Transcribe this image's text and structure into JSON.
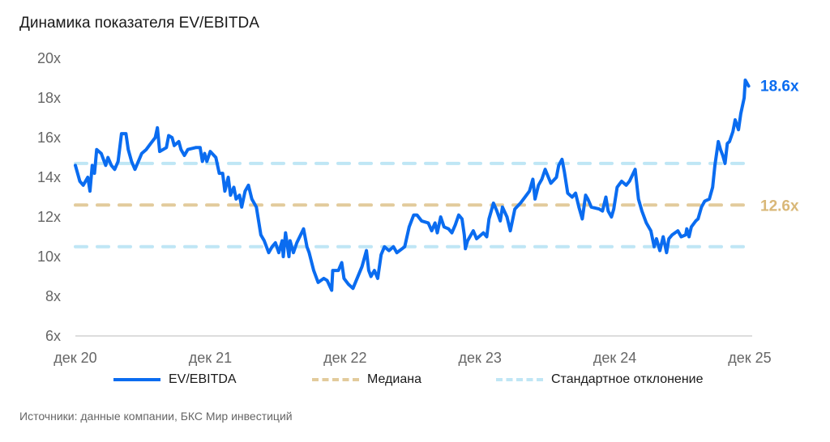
{
  "title": "Динамика показателя EV/EBITDA",
  "source": "Источники: данные компании, БКС Мир инвестиций",
  "colors": {
    "line": "#0a6cf0",
    "median": "#e2cb9c",
    "std": "#bfe6f5",
    "axis": "#bbbbbb",
    "text": "#666666"
  },
  "chart_data": {
    "type": "line",
    "title": "Динамика показателя EV/EBITDA",
    "xlabel": "",
    "ylabel": "",
    "x_unit": "months since дек 20",
    "xlim": [
      0,
      60
    ],
    "ylim": [
      6,
      20
    ],
    "y_ticks": [
      {
        "v": 6,
        "label": "6x"
      },
      {
        "v": 8,
        "label": "8x"
      },
      {
        "v": 10,
        "label": "10x"
      },
      {
        "v": 12,
        "label": "12x"
      },
      {
        "v": 14,
        "label": "14x"
      },
      {
        "v": 16,
        "label": "16x"
      },
      {
        "v": 18,
        "label": "18x"
      },
      {
        "v": 20,
        "label": "20x"
      }
    ],
    "x_ticks": [
      {
        "v": 0,
        "label": "дек 20"
      },
      {
        "v": 12,
        "label": "дек 21"
      },
      {
        "v": 24,
        "label": "дек 22"
      },
      {
        "v": 36,
        "label": "дек 23"
      },
      {
        "v": 48,
        "label": "дек 24"
      },
      {
        "v": 60,
        "label": "дек 25"
      }
    ],
    "grid": false,
    "legend_position": "bottom",
    "series": [
      {
        "name": "EV/EBITDA",
        "end_label": "18.6x",
        "x": [
          0,
          0.4,
          0.7,
          1.1,
          1.3,
          1.5,
          1.7,
          1.9,
          2.3,
          2.7,
          2.9,
          3.2,
          3.5,
          3.8,
          4.1,
          4.5,
          4.7,
          5.0,
          5.3,
          5.6,
          5.9,
          6.3,
          6.7,
          7.1,
          7.3,
          7.5,
          8.1,
          8.3,
          8.6,
          8.8,
          9.2,
          9.4,
          9.7,
          10.0,
          10.7,
          11.1,
          11.3,
          11.5,
          11.7,
          12.0,
          12.5,
          12.8,
          13.1,
          13.3,
          13.6,
          13.8,
          14.1,
          14.3,
          14.6,
          14.8,
          15.1,
          15.4,
          15.7,
          16.1,
          16.5,
          16.8,
          17.2,
          17.5,
          17.8,
          18.1,
          18.4,
          18.5,
          18.7,
          19.0,
          19.1,
          19.4,
          19.7,
          20.3,
          20.6,
          20.8,
          21.2,
          21.6,
          22.1,
          22.4,
          22.8,
          22.9,
          23.4,
          23.7,
          23.9,
          24.3,
          24.7,
          25.5,
          25.9,
          26.1,
          26.3,
          26.6,
          26.9,
          27.2,
          27.5,
          27.9,
          28.3,
          28.6,
          29.3,
          29.7,
          30.1,
          30.4,
          30.8,
          31.4,
          31.7,
          32.0,
          32.2,
          32.5,
          32.8,
          33.2,
          33.5,
          33.8,
          34.1,
          34.4,
          34.6,
          34.7,
          34.9,
          35.4,
          35.7,
          35.9,
          36.3,
          36.6,
          36.8,
          37.2,
          37.5,
          37.8,
          38.0,
          38.4,
          38.7,
          39.1,
          39.6,
          40.0,
          40.4,
          40.7,
          40.9,
          41.2,
          41.5,
          41.8,
          42.3,
          42.8,
          43.0,
          43.3,
          43.5,
          43.8,
          44.2,
          44.5,
          44.8,
          45.1,
          45.4,
          45.6,
          45.9,
          46.6,
          46.9,
          47.2,
          47.4,
          47.7,
          47.9,
          48.2,
          48.6,
          49.0,
          49.3,
          49.8,
          50.1,
          50.4,
          50.8,
          51.2,
          51.5,
          51.7,
          52.0,
          52.3,
          52.6,
          52.8,
          53.1,
          53.6,
          53.9,
          54.3,
          54.4,
          54.6,
          54.8,
          55.2,
          55.4,
          55.7,
          56.0,
          56.4,
          56.7,
          56.9,
          57.2,
          57.4,
          57.6,
          57.8,
          58.0,
          58.2,
          58.5,
          58.7,
          59.0,
          59.2,
          59.5,
          59.6,
          59.9
        ],
        "y": [
          14.6,
          13.8,
          13.6,
          14.0,
          13.3,
          14.6,
          14.2,
          15.4,
          15.2,
          14.6,
          15.0,
          14.6,
          14.4,
          14.8,
          16.2,
          16.2,
          15.4,
          14.8,
          14.4,
          14.8,
          15.2,
          15.4,
          15.7,
          16.0,
          16.5,
          15.3,
          15.5,
          16.1,
          16.0,
          15.6,
          15.8,
          15.4,
          15.1,
          15.4,
          15.5,
          15.5,
          14.8,
          15.2,
          14.8,
          15.3,
          15.0,
          14.2,
          14.2,
          13.3,
          14.0,
          13.1,
          13.5,
          12.9,
          13.1,
          12.5,
          13.3,
          13.6,
          12.9,
          12.5,
          11.1,
          10.8,
          10.2,
          10.5,
          10.7,
          10.2,
          10.8,
          10.0,
          11.2,
          10.0,
          10.8,
          10.2,
          10.7,
          11.4,
          10.5,
          10.2,
          9.3,
          8.7,
          8.9,
          8.8,
          8.3,
          9.3,
          9.3,
          9.7,
          8.9,
          8.6,
          8.4,
          9.5,
          10.3,
          9.3,
          9.0,
          9.3,
          8.9,
          10.1,
          10.5,
          10.3,
          10.5,
          10.2,
          10.5,
          11.5,
          12.1,
          12.1,
          11.8,
          11.7,
          11.3,
          11.7,
          11.2,
          12.0,
          11.5,
          11.4,
          11.2,
          11.6,
          12.1,
          11.9,
          11.1,
          10.4,
          10.8,
          11.3,
          10.9,
          11.0,
          11.2,
          11.0,
          11.9,
          12.7,
          12.3,
          11.8,
          12.5,
          12.0,
          11.3,
          12.4,
          12.7,
          13.0,
          13.3,
          13.9,
          12.9,
          13.6,
          13.9,
          14.4,
          13.7,
          14.0,
          14.6,
          14.9,
          14.3,
          13.2,
          13.0,
          13.2,
          12.5,
          11.9,
          13.1,
          12.9,
          12.5,
          12.4,
          12.3,
          13.0,
          12.3,
          12.0,
          12.4,
          13.5,
          13.8,
          13.6,
          13.8,
          14.4,
          12.9,
          12.3,
          11.7,
          11.3,
          10.5,
          10.9,
          10.3,
          11.0,
          10.2,
          10.9,
          11.1,
          11.3,
          11.0,
          11.1,
          11.4,
          11.0,
          11.5,
          11.8,
          11.9,
          12.5,
          12.8,
          12.9,
          13.5,
          14.6,
          15.8,
          15.4,
          15.1,
          14.7,
          15.7,
          15.8,
          16.3,
          16.9,
          16.4,
          17.2,
          18.0,
          18.9,
          18.6
        ]
      },
      {
        "name": "Медиана",
        "value": 12.6,
        "end_label": "12.6x"
      },
      {
        "name": "Стандартное отклонение",
        "values": [
          14.7,
          10.5
        ]
      }
    ]
  }
}
